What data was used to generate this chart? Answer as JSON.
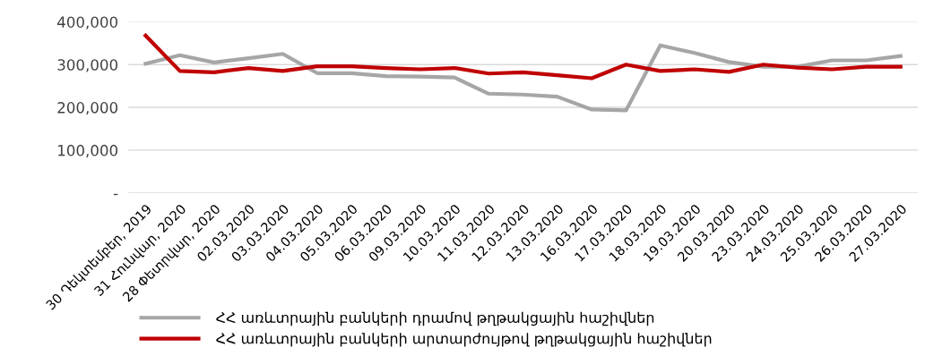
{
  "chart_data": {
    "type": "line",
    "categories": [
      "30 Դեկտեմբեր, 2019",
      "31 Հունվար, 2020",
      "28 Փետրվար, 2020",
      "02.03.2020",
      "03.03.2020",
      "04.03.2020",
      "05.03.2020",
      "06.03.2020",
      "09.03.2020",
      "10.03.2020",
      "11.03.2020",
      "12.03.2020",
      "13.03.2020",
      "16.03.2020",
      "17.03.2020",
      "18.03.2020",
      "19.03.2020",
      "20.03.2020",
      "23.03.2020",
      "24.03.2020",
      "25.03.2020",
      "26.03.2020",
      "27.03.2020"
    ],
    "series": [
      {
        "name": "ՀՀ առևտրային բանկերի դրամով թղթակցային հաշիվներ",
        "color": "#a6a6a6",
        "values": [
          302000,
          322000,
          305000,
          315000,
          325000,
          280000,
          280000,
          273000,
          272000,
          270000,
          232000,
          230000,
          225000,
          195000,
          193000,
          345000,
          327000,
          306000,
          295000,
          295000,
          310000,
          310000,
          320000
        ]
      },
      {
        "name": "ՀՀ առևտրային բանկերի արտարժույթով թղթակցային հաշիվներ",
        "color": "#c00000",
        "values": [
          368000,
          285000,
          282000,
          292000,
          285000,
          296000,
          296000,
          292000,
          289000,
          292000,
          279000,
          282000,
          275000,
          268000,
          300000,
          285000,
          289000,
          283000,
          300000,
          293000,
          289000,
          295000,
          295000
        ]
      }
    ],
    "ylim": [
      0,
      400000
    ],
    "yticks": [
      {
        "value": 0,
        "label": "-"
      },
      {
        "value": 100000,
        "label": "100,000"
      },
      {
        "value": 200000,
        "label": "200,000"
      },
      {
        "value": 300000,
        "label": "300,000"
      },
      {
        "value": 400000,
        "label": "400,000"
      }
    ],
    "grid": "y",
    "legend": "bottom",
    "marker": "none",
    "line_style": "solid"
  }
}
